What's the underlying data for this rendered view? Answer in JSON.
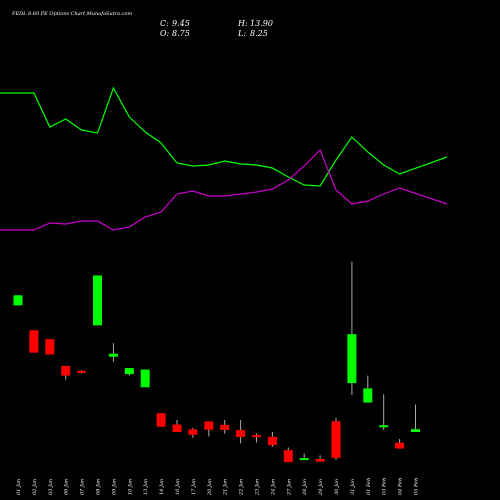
{
  "header": {
    "title": "FEDL 8.60 PE Options Chart MunafaSutra.com",
    "close_label": "C:",
    "close_value": "9.45",
    "high_label": "H:",
    "high_value": "13.90",
    "open_label": "O:",
    "open_value": "8.75",
    "low_label": "L:",
    "low_value": "8.25"
  },
  "colors": {
    "background": "#000000",
    "up": "#00ff00",
    "down": "#ff0000",
    "line_green": "#00ff00",
    "line_magenta": "#cc00cc",
    "wick": "#aaaaaa"
  },
  "chart_data": [
    {
      "type": "candlestick",
      "title": "FEDL 8.60 PE Options Chart MunafaSutra.com",
      "categories": [
        "01 Jan",
        "02 Jan",
        "03 Jan",
        "06 Jan",
        "07 Jan",
        "08 Jan",
        "09 Jan",
        "10 Jan",
        "13 Jan",
        "14 Jan",
        "16 Jan",
        "17 Jan",
        "20 Jan",
        "21 Jan",
        "22 Jan",
        "23 Jan",
        "24 Jan",
        "27 Jan",
        "28 Jan",
        "29 Jan",
        "30 Jan",
        "31 Jan",
        "01 Feb",
        "03 Feb",
        "04 Feb",
        "05 Feb"
      ],
      "series": [
        {
          "open": [
            7.98,
            6.62,
            6.14,
            4.68,
            4.41,
            6.89,
            5.18,
            4.23,
            3.51,
            2.1,
            1.48,
            1.22,
            1.65,
            1.46,
            1.18,
            0.9,
            0.81,
            0.08,
            -0.35,
            -0.4,
            1.66,
            3.74,
            2.68,
            1.35,
            0.49,
            1.07
          ],
          "close": [
            8.53,
            5.4,
            5.3,
            4.15,
            4.34,
            9.61,
            5.34,
            4.56,
            4.48,
            1.36,
            1.07,
            0.92,
            1.2,
            1.18,
            0.8,
            0.85,
            0.36,
            -0.57,
            -0.35,
            -0.55,
            -0.35,
            6.41,
            3.45,
            1.44,
            0.17,
            1.23
          ],
          "high": [
            8.53,
            6.62,
            6.14,
            4.68,
            4.45,
            9.61,
            5.92,
            4.56,
            4.48,
            2.1,
            1.73,
            1.3,
            1.65,
            1.73,
            1.73,
            0.99,
            1.07,
            0.23,
            -0.1,
            -0.2,
            1.84,
            10.36,
            4.15,
            3.13,
            0.69,
            2.57
          ],
          "low": [
            7.98,
            5.4,
            5.3,
            3.93,
            4.26,
            6.89,
            4.9,
            4.15,
            3.61,
            1.36,
            1.07,
            0.74,
            0.83,
            0.98,
            0.45,
            0.5,
            0.26,
            -0.57,
            -0.45,
            -0.55,
            -0.45,
            3.09,
            2.68,
            1.18,
            0.17,
            1.07
          ]
        }
      ],
      "ylim": [
        -1,
        11
      ]
    },
    {
      "type": "line",
      "categories": [
        "01 Jan",
        "02 Jan",
        "03 Jan",
        "06 Jan",
        "07 Jan",
        "08 Jan",
        "09 Jan",
        "10 Jan",
        "13 Jan",
        "14 Jan",
        "16 Jan",
        "17 Jan",
        "20 Jan",
        "21 Jan",
        "22 Jan",
        "23 Jan",
        "24 Jan",
        "27 Jan",
        "28 Jan",
        "29 Jan",
        "30 Jan",
        "31 Jan",
        "01 Feb",
        "03 Feb",
        "04 Feb",
        "05 Feb"
      ],
      "series": [
        {
          "color": "#00ff00",
          "values": [
            93,
            93,
            127,
            119,
            130,
            133,
            88,
            117,
            132,
            143,
            163,
            166,
            165,
            161,
            164,
            165,
            168,
            177,
            185,
            186,
            160,
            137,
            152,
            165,
            174,
            157
          ]
        },
        {
          "color": "#cc00cc",
          "values": [
            230,
            230,
            223,
            224,
            221,
            221,
            230,
            227,
            217,
            212,
            194,
            191,
            196,
            196,
            194,
            192,
            189,
            180,
            166,
            150,
            190,
            204,
            201,
            194,
            188,
            204
          ]
        }
      ],
      "ylim": [
        80,
        240
      ]
    }
  ]
}
